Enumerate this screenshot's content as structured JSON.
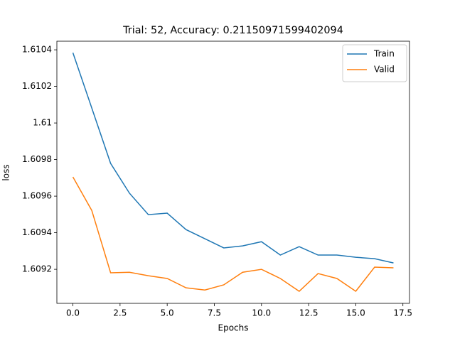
{
  "chart_data": {
    "type": "line",
    "title": "Trial: 52, Accuracy: 0.21150971599402094",
    "x_label": "Epochs",
    "y_label": "loss",
    "x": [
      0,
      1,
      2,
      3,
      4,
      5,
      6,
      7,
      8,
      9,
      10,
      11,
      12,
      13,
      14,
      15,
      16,
      17
    ],
    "series": [
      {
        "name": "Train",
        "color": "#1f77b4",
        "values": [
          1.610384,
          1.610082,
          1.609779,
          1.609616,
          1.609499,
          1.609507,
          1.609417,
          1.609367,
          1.609317,
          1.609328,
          1.609351,
          1.609278,
          1.609324,
          1.609278,
          1.609278,
          1.609266,
          1.609258,
          1.609235
        ]
      },
      {
        "name": "Valid",
        "color": "#ff7f0e",
        "values": [
          1.609705,
          1.609522,
          1.609181,
          1.609184,
          1.609165,
          1.60915,
          1.609099,
          1.609087,
          1.609115,
          1.609184,
          1.6092,
          1.60915,
          1.60908,
          1.609177,
          1.60915,
          1.60908,
          1.609212,
          1.609208
        ]
      }
    ],
    "xlim": [
      -0.85,
      17.85
    ],
    "xticks": [
      {
        "value": 0,
        "label": "0.0"
      },
      2.5,
      {
        "value": 5,
        "label": "5.0"
      },
      7.5,
      {
        "value": 10,
        "label": "10.0"
      },
      12.5,
      {
        "value": 15,
        "label": "15.0"
      },
      17.5
    ],
    "ylim": [
      1.609014,
      1.610447
    ],
    "yticks": [
      1.6092,
      1.6094,
      1.6096,
      1.6098,
      1.61,
      1.6102,
      1.6104
    ],
    "legend": "upper right"
  }
}
